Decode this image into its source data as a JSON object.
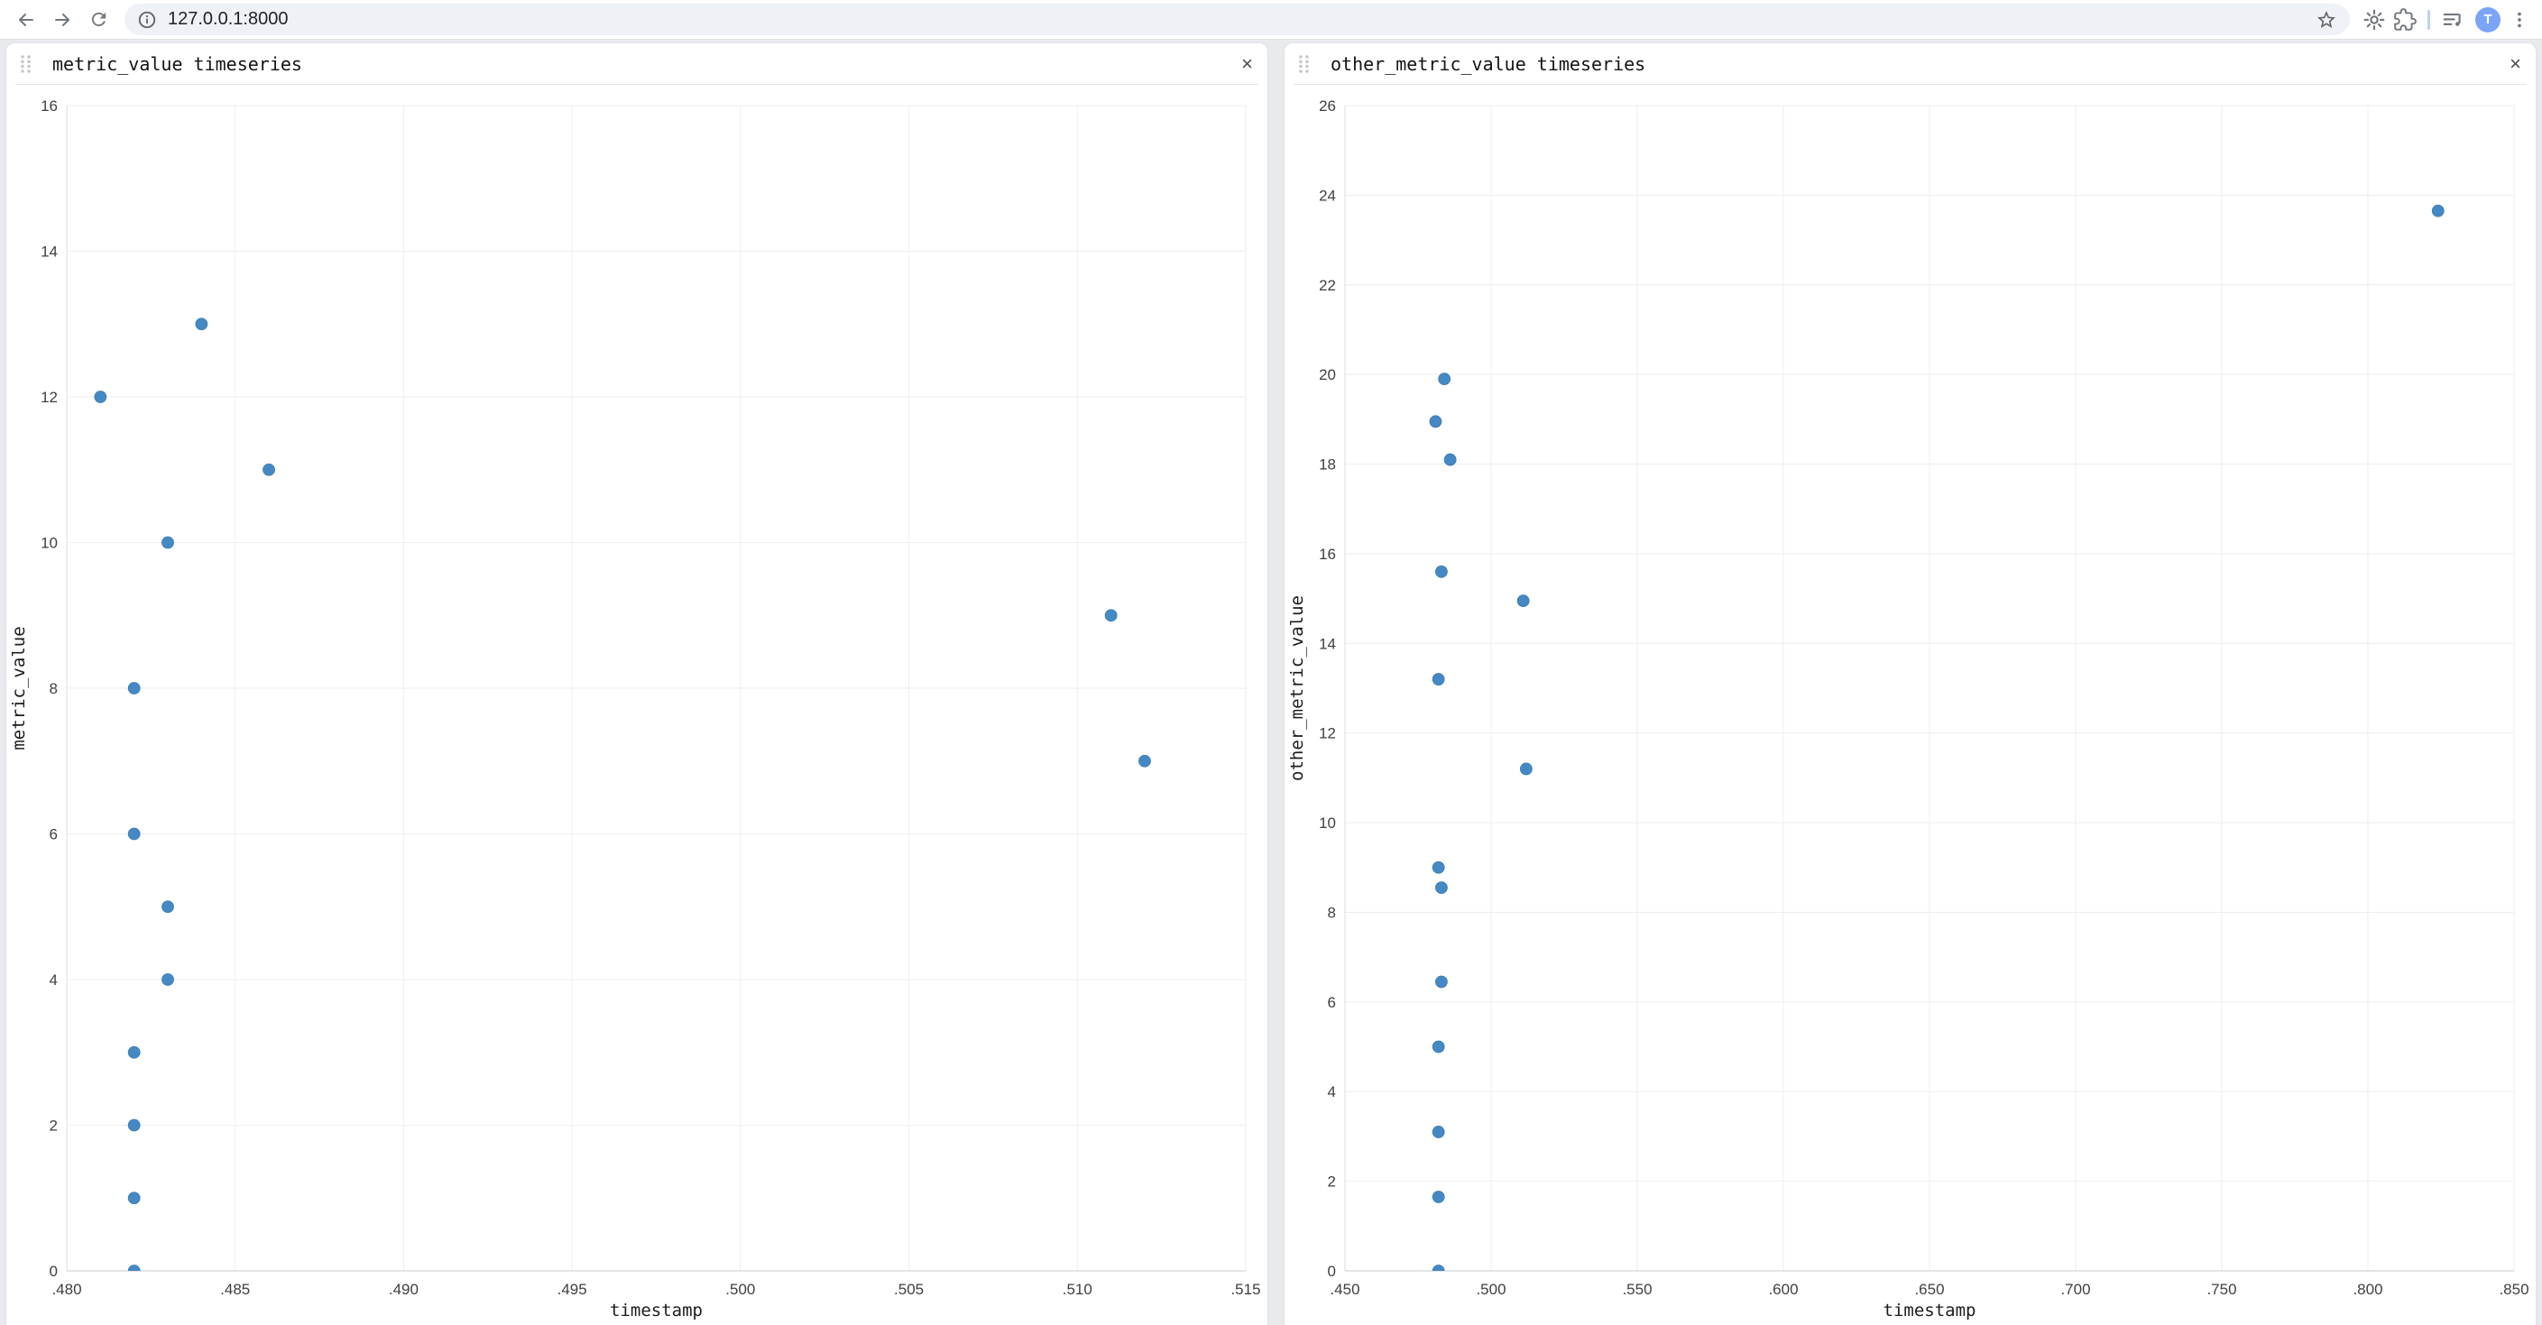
{
  "browser": {
    "url": "127.0.0.1:8000",
    "avatar_initial": "T",
    "avatar_color": "#7aa5f7",
    "icon_color": "#72777d"
  },
  "panels": [
    {
      "title": "metric_value timeseries",
      "close_glyph": "×"
    },
    {
      "title": "other_metric_value timeseries",
      "close_glyph": "×"
    }
  ],
  "chart_data": [
    {
      "type": "scatter",
      "title": "metric_value timeseries",
      "xlabel": "timestamp",
      "ylabel": "metric_value",
      "xlim": [
        0.48,
        0.515
      ],
      "ylim": [
        0,
        16
      ],
      "xticks": [
        0.48,
        0.485,
        0.49,
        0.495,
        0.5,
        0.505,
        0.51,
        0.515
      ],
      "xtick_labels": [
        ".480",
        ".485",
        ".490",
        ".495",
        ".500",
        ".505",
        ".510",
        ".515"
      ],
      "yticks": [
        0,
        2,
        4,
        6,
        8,
        10,
        12,
        14,
        16
      ],
      "grid": true,
      "legend": null,
      "marker_color": "#4589c4",
      "points": [
        [
          0.484,
          13
        ],
        [
          0.481,
          12
        ],
        [
          0.486,
          11
        ],
        [
          0.483,
          10
        ],
        [
          0.511,
          9
        ],
        [
          0.482,
          8
        ],
        [
          0.512,
          7
        ],
        [
          0.482,
          6
        ],
        [
          0.483,
          5
        ],
        [
          0.483,
          4
        ],
        [
          0.482,
          3
        ],
        [
          0.482,
          2
        ],
        [
          0.482,
          1
        ],
        [
          0.482,
          0
        ]
      ]
    },
    {
      "type": "scatter",
      "title": "other_metric_value timeseries",
      "xlabel": "timestamp",
      "ylabel": "other_metric_value",
      "xlim": [
        0.45,
        0.85
      ],
      "ylim": [
        0,
        26
      ],
      "xticks": [
        0.45,
        0.5,
        0.55,
        0.6,
        0.65,
        0.7,
        0.75,
        0.8,
        0.85
      ],
      "xtick_labels": [
        ".450",
        ".500",
        ".550",
        ".600",
        ".650",
        ".700",
        ".750",
        ".800",
        ".850"
      ],
      "yticks": [
        0,
        2,
        4,
        6,
        8,
        10,
        12,
        14,
        16,
        18,
        20,
        22,
        24,
        26
      ],
      "grid": true,
      "legend": null,
      "marker_color": "#4589c4",
      "points": [
        [
          0.824,
          23.65
        ],
        [
          0.484,
          19.9
        ],
        [
          0.481,
          18.95
        ],
        [
          0.486,
          18.1
        ],
        [
          0.483,
          15.6
        ],
        [
          0.511,
          14.95
        ],
        [
          0.482,
          13.2
        ],
        [
          0.512,
          11.2
        ],
        [
          0.482,
          9.0
        ],
        [
          0.483,
          8.55
        ],
        [
          0.483,
          6.45
        ],
        [
          0.482,
          5.0
        ],
        [
          0.482,
          3.1
        ],
        [
          0.482,
          1.65
        ],
        [
          0.482,
          0.0
        ]
      ]
    }
  ]
}
